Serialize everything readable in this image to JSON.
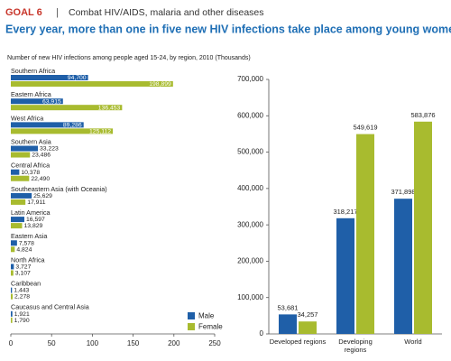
{
  "header": {
    "goal": "GOAL 6",
    "separator": "|",
    "topic": "Combat HIV/AIDS, malaria and other diseases",
    "title": "Every year, more than one in five new HIV infections take place among young women"
  },
  "chart_data": [
    {
      "type": "bar",
      "orientation": "horizontal",
      "title": "Number of new HIV infections among people aged 15-24, by region, 2010 (Thousands)",
      "categories": [
        "Southern Africa",
        "Eastern Africa",
        "West Africa",
        "Southern Asia",
        "Central Africa",
        "Southeastern Asia (with Oceania)",
        "Latin America",
        "Eastern Asia",
        "North Africa",
        "Caribbean",
        "Caucasus and Central Asia"
      ],
      "series": [
        {
          "name": "Male",
          "color": "#1f5fa8",
          "values": [
            94.7,
            63.915,
            89.286,
            33.223,
            10.378,
            25.629,
            16.597,
            7.578,
            3.727,
            1.443,
            1.921
          ],
          "value_labels": [
            "94,700",
            "63,915",
            "89,286",
            "33,223",
            "10,378",
            "25,629",
            "16,597",
            "7,578",
            "3,727",
            "1,443",
            "1,921"
          ]
        },
        {
          "name": "Female",
          "color": "#a8bb2f",
          "values": [
            198.899,
            136.453,
            125.112,
            23.486,
            22.49,
            17.911,
            13.829,
            4.824,
            3.107,
            2.278,
            1.79
          ],
          "value_labels": [
            "198,899",
            "136,453",
            "125,112",
            "23,486",
            "22,490",
            "17,911",
            "13,829",
            "4,824",
            "3,107",
            "2,278",
            "1,790"
          ]
        }
      ],
      "xlim": [
        0,
        250
      ],
      "xticks": [
        0,
        50,
        100,
        150,
        200,
        250
      ],
      "legend": "lower right"
    },
    {
      "type": "bar",
      "orientation": "vertical",
      "categories": [
        "Developed regions",
        "Developing regions",
        "World"
      ],
      "series": [
        {
          "color": "#1f5fa8",
          "values": [
            53681,
            318217,
            371898
          ],
          "value_labels": [
            "53,681",
            "318,217",
            "371,898"
          ]
        },
        {
          "color": "#a8bb2f",
          "values": [
            34257,
            549619,
            583876
          ],
          "value_labels": [
            "34,257",
            "549,619",
            "583,876"
          ]
        }
      ],
      "ylim": [
        0,
        700000
      ],
      "yticks": [
        0,
        {
          "value": 100000,
          "label": "100,000"
        },
        {
          "value": 200000,
          "label": "200,000"
        },
        {
          "value": 300000,
          "label": "300,000"
        },
        {
          "value": 400000,
          "label": "400,000"
        },
        {
          "value": 500000,
          "label": "500,000"
        },
        {
          "value": 600000,
          "label": "600,000"
        },
        {
          "value": 700000,
          "label": "700,000"
        }
      ]
    }
  ]
}
